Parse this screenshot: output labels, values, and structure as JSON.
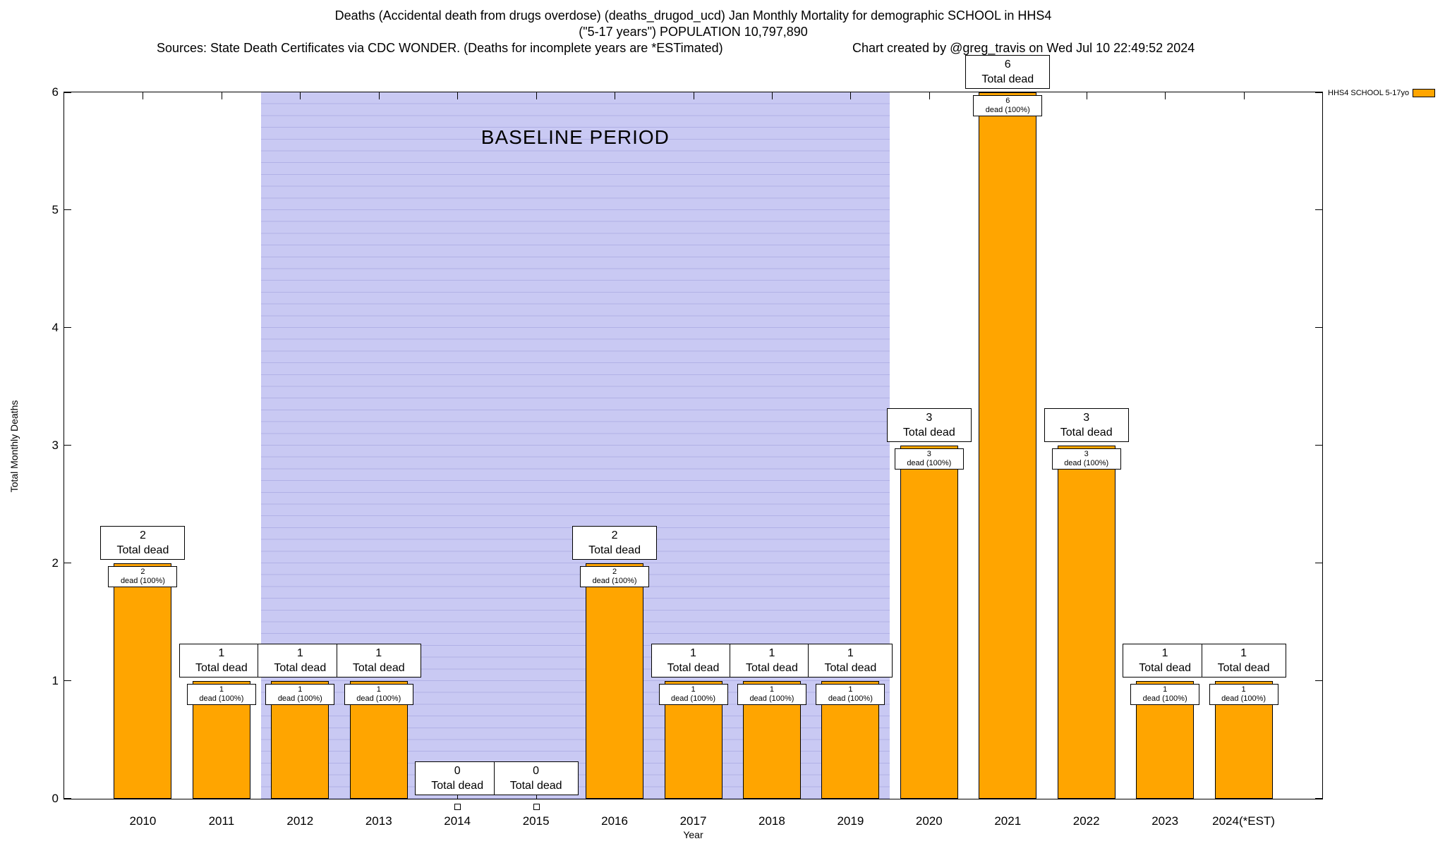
{
  "header": {
    "title_line1": "Deaths (Accidental death from drugs overdose) (deaths_drugod_ucd) Jan Monthly Mortality for demographic SCHOOL in HHS4",
    "title_line2": "(\"5-17 years\") POPULATION 10,797,890",
    "sources": "Sources: State Death Certificates via CDC WONDER. (Deaths for incomplete years are *ESTimated)",
    "credit": "Chart created by @greg_travis on Wed Jul 10 22:49:52 2024"
  },
  "chart_data": {
    "type": "bar",
    "categories": [
      "2010",
      "2011",
      "2012",
      "2013",
      "2014",
      "2015",
      "2016",
      "2017",
      "2018",
      "2019",
      "2020",
      "2021",
      "2022",
      "2023",
      "2024(*EST)"
    ],
    "values": [
      2,
      1,
      1,
      1,
      0,
      0,
      2,
      1,
      1,
      1,
      3,
      6,
      3,
      1,
      1
    ],
    "bar_top_label_suffix": "Total dead",
    "bar_inner_label_suffix": "dead (100%)",
    "xlabel": "Year",
    "ylabel": "Total Monthly Deaths",
    "ylim": [
      0,
      6
    ],
    "yticks": [
      0,
      1,
      2,
      3,
      4,
      5,
      6
    ],
    "grid": false,
    "legend": {
      "position": "top-right",
      "label": "HHS4 SCHOOL 5-17yo"
    },
    "baseline_region": {
      "label": "BASELINE PERIOD",
      "start_category": "2012",
      "end_category": "2019",
      "fill": "#c9c9f3",
      "line": "#b1b1e6"
    },
    "colors": {
      "bar": "#ffa500",
      "bar_border": "#000000"
    }
  }
}
